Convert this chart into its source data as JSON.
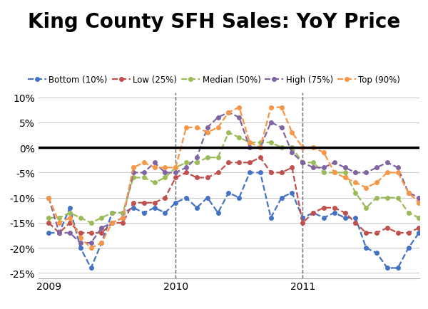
{
  "title": "King County SFH Sales: YoY Price",
  "series": {
    "Bottom (10%)": {
      "color": "#4472C4",
      "values": [
        -17,
        -17,
        -12,
        -20,
        -24,
        -19,
        -13,
        -13,
        -12,
        -13,
        -12,
        -13,
        -11,
        -10,
        -12,
        -10,
        -13,
        -9,
        -10,
        -5,
        -5,
        -14,
        -10,
        -9,
        -14,
        -13,
        -14,
        -13,
        -14,
        -14,
        -20,
        -21,
        -24,
        -24,
        -20,
        -17
      ]
    },
    "Low (25%)": {
      "color": "#C0504D",
      "values": [
        -15,
        -17,
        -15,
        -17,
        -17,
        -17,
        -15,
        -15,
        -11,
        -11,
        -11,
        -10,
        -6,
        -5,
        -6,
        -6,
        -5,
        -3,
        -3,
        -3,
        -2,
        -5,
        -5,
        -4,
        -15,
        -13,
        -12,
        -12,
        -13,
        -15,
        -17,
        -17,
        -16,
        -17,
        -17,
        -16
      ]
    },
    "Median (50%)": {
      "color": "#9BBB59",
      "values": [
        -14,
        -14,
        -13,
        -14,
        -15,
        -14,
        -13,
        -13,
        -6,
        -6,
        -7,
        -6,
        -4,
        -3,
        -3,
        -2,
        -2,
        3,
        2,
        1,
        1,
        1,
        0,
        0,
        -3,
        -3,
        -5,
        -5,
        -5,
        -9,
        -12,
        -10,
        -10,
        -10,
        -13,
        -14
      ]
    },
    "High (75%)": {
      "color": "#8064A2",
      "values": [
        -10,
        -17,
        -17,
        -19,
        -19,
        -16,
        -15,
        -14,
        -5,
        -5,
        -3,
        -5,
        -5,
        -4,
        -2,
        4,
        6,
        7,
        6,
        0,
        0,
        5,
        4,
        -1,
        -3,
        -4,
        -4,
        -3,
        -4,
        -5,
        -5,
        -4,
        -3,
        -4,
        -9,
        -10
      ]
    },
    "Top (90%)": {
      "color": "#F79646",
      "values": [
        -10,
        -15,
        -14,
        -18,
        -20,
        -19,
        -15,
        -14,
        -4,
        -3,
        -4,
        -4,
        -4,
        4,
        4,
        3,
        4,
        7,
        8,
        1,
        0,
        8,
        8,
        3,
        0,
        0,
        -1,
        -5,
        -6,
        -7,
        -8,
        -7,
        -5,
        -5,
        -9,
        -11
      ]
    }
  },
  "x_ticks": [
    2009,
    2010,
    2011
  ],
  "x_vlines": [
    2010.0,
    2011.0
  ],
  "ylim": [
    -26,
    11
  ],
  "yticks": [
    -25,
    -20,
    -15,
    -10,
    -5,
    0,
    5,
    10
  ],
  "background_color": "#FFFFFF",
  "grid_color": "#CCCCCC",
  "title_fontsize": 20,
  "legend_fontsize": 8.5,
  "tick_fontsize": 10,
  "linewidth": 1.6,
  "markersize": 4
}
